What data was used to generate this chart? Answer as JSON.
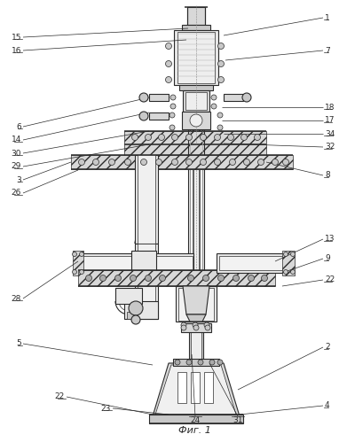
{
  "bg": "#ffffff",
  "lc": "#2a2a2a",
  "gray1": "#e8e8e8",
  "gray2": "#d8d8d8",
  "gray3": "#c8c8c8",
  "gray4": "#b8b8b8",
  "caption": "Фиг. 1",
  "right_labels": [
    [
      "1",
      372,
      20
    ],
    [
      "7",
      372,
      57
    ],
    [
      "18",
      372,
      121
    ],
    [
      "17",
      372,
      136
    ],
    [
      "34",
      372,
      151
    ],
    [
      "32",
      372,
      166
    ],
    [
      "8",
      372,
      198
    ],
    [
      "13",
      372,
      270
    ],
    [
      "9",
      372,
      292
    ],
    [
      "22",
      372,
      316
    ],
    [
      "2",
      372,
      392
    ],
    [
      "4",
      372,
      458
    ]
  ],
  "left_labels": [
    [
      "15",
      18,
      42
    ],
    [
      "16",
      18,
      57
    ],
    [
      "6",
      18,
      143
    ],
    [
      "14",
      18,
      158
    ],
    [
      "30",
      18,
      173
    ],
    [
      "29",
      18,
      188
    ],
    [
      "3",
      18,
      203
    ],
    [
      "26",
      18,
      218
    ],
    [
      "28",
      18,
      337
    ],
    [
      "5",
      18,
      388
    ]
  ],
  "left_labels2": [
    [
      "22",
      65,
      448
    ],
    [
      "23",
      118,
      461
    ]
  ],
  "bottom_labels": [
    [
      "24",
      218,
      468
    ],
    [
      "31",
      268,
      468
    ]
  ]
}
